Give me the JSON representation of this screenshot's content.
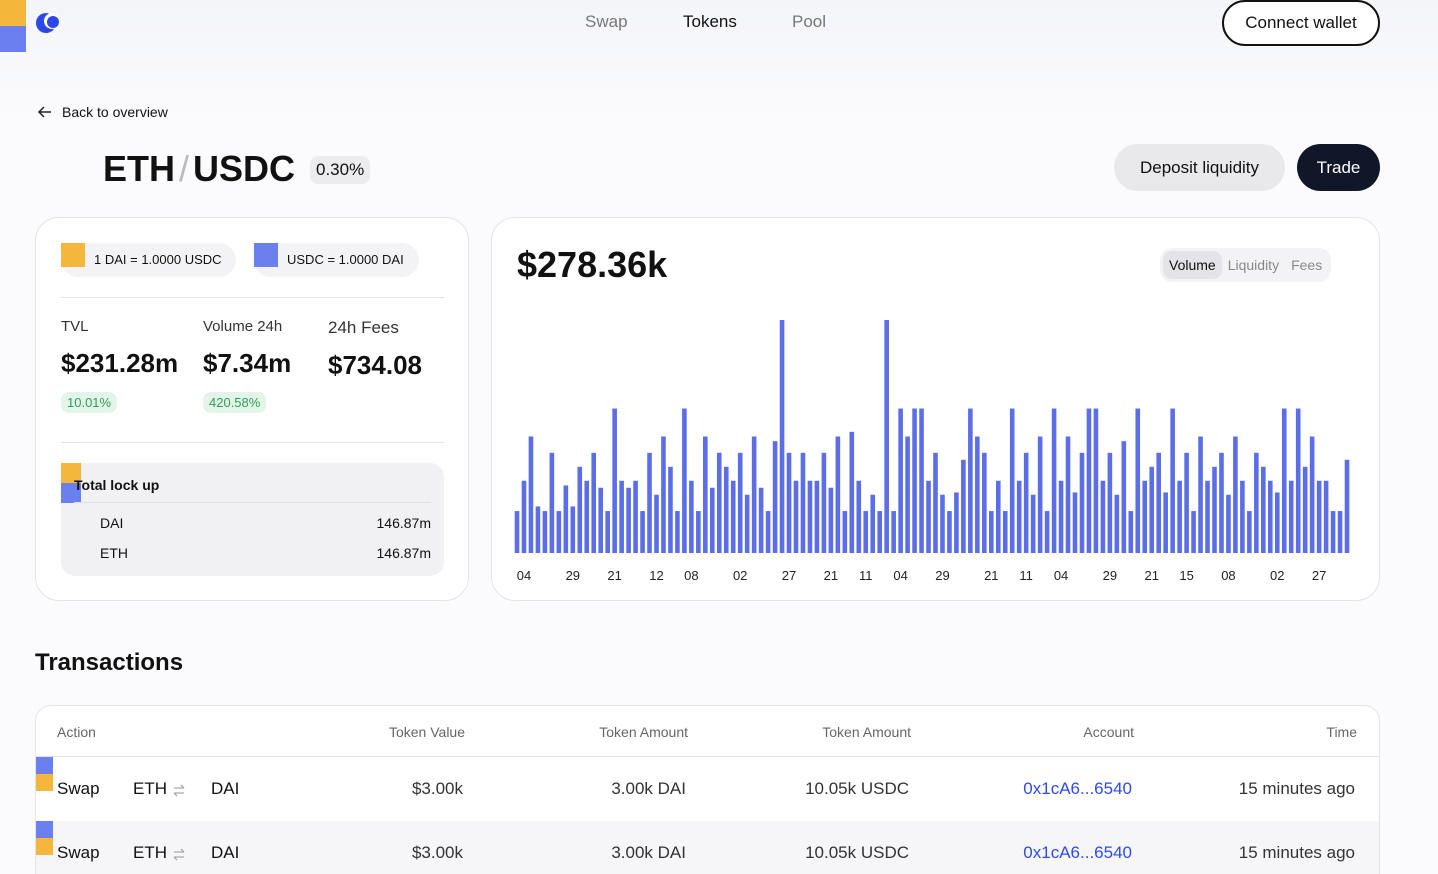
{
  "nav": {
    "links": [
      "Swap",
      "Tokens",
      "Pool"
    ],
    "connect": "Connect wallet"
  },
  "back": "Back to overview",
  "pair": {
    "base": "ETH",
    "separator": "/",
    "quote": "USDC",
    "fee": "0.30%",
    "deposit": "Deposit liquidity",
    "trade": "Trade"
  },
  "rates": [
    "1 DAI = 1.0000 USDC",
    "USDC = 1.0000 DAI"
  ],
  "stats": [
    {
      "label": "TVL",
      "value": "$231.28m",
      "change": "10.01%"
    },
    {
      "label": "Volume 24h",
      "value": "$7.34m",
      "change": "420.58%"
    },
    {
      "label": "24h Fees",
      "value": "$734.08"
    }
  ],
  "lockup": {
    "title": "Total lock up",
    "rows": [
      {
        "token": "DAI",
        "amount": "146.87m"
      },
      {
        "token": "ETH",
        "amount": "146.87m"
      }
    ]
  },
  "headline": "$278.36k",
  "tabs": [
    "Volume",
    "Liquidity",
    "Fees"
  ],
  "chart_data": {
    "type": "bar",
    "color": "#5b6ee8",
    "ylim": [
      0,
      100
    ],
    "categories": [
      null,
      "04",
      null,
      null,
      null,
      null,
      null,
      null,
      "29",
      null,
      null,
      null,
      null,
      null,
      "21",
      null,
      null,
      null,
      null,
      null,
      "12",
      null,
      null,
      null,
      null,
      "08",
      null,
      null,
      null,
      null,
      null,
      null,
      "02",
      null,
      null,
      null,
      null,
      null,
      null,
      "27",
      null,
      null,
      null,
      null,
      null,
      "21",
      null,
      null,
      null,
      null,
      "11",
      null,
      null,
      null,
      null,
      "04",
      null,
      null,
      null,
      null,
      null,
      "29",
      null,
      null,
      null,
      null,
      null,
      null,
      "21",
      null,
      null,
      null,
      null,
      "11",
      null,
      null,
      null,
      null,
      "04",
      null,
      null,
      null,
      null,
      null,
      null,
      "29",
      null,
      null,
      null,
      null,
      null,
      "21",
      null,
      null,
      null,
      null,
      "15",
      null,
      null,
      null,
      null,
      null,
      "08",
      null,
      null,
      null,
      null,
      null,
      null,
      "02",
      null,
      null,
      null,
      null,
      null,
      "27",
      null,
      null,
      null,
      null
    ],
    "values": [
      18,
      31,
      50,
      20,
      18,
      43,
      18,
      29,
      20,
      37,
      31,
      43,
      28,
      18,
      62,
      31,
      28,
      31,
      18,
      43,
      25,
      50,
      37,
      18,
      62,
      31,
      18,
      50,
      28,
      43,
      37,
      31,
      43,
      25,
      50,
      28,
      18,
      48,
      100,
      43,
      31,
      43,
      31,
      31,
      43,
      28,
      50,
      18,
      52,
      31,
      18,
      25,
      18,
      100,
      18,
      62,
      50,
      62,
      62,
      31,
      43,
      25,
      18,
      26,
      40,
      62,
      50,
      43,
      18,
      31,
      18,
      62,
      31,
      43,
      25,
      50,
      18,
      62,
      31,
      50,
      26,
      43,
      62,
      62,
      31,
      43,
      25,
      48,
      18,
      62,
      31,
      37,
      43,
      26,
      62,
      31,
      43,
      18,
      50,
      31,
      37,
      43,
      25,
      50,
      31,
      18,
      43,
      37,
      31,
      26,
      62,
      31,
      62,
      37,
      50,
      31,
      31,
      18,
      18,
      40
    ]
  },
  "transactions": {
    "title": "Transactions",
    "columns": [
      "Action",
      "Token Value",
      "Token Amount",
      "Token Amount",
      "Account",
      "Time"
    ],
    "rows": [
      {
        "action": "Swap",
        "from": "ETH",
        "to": "DAI",
        "value": "$3.00k",
        "amount_a": "3.00k DAI",
        "amount_b": "10.05k USDC",
        "account": "0x1cA6...6540",
        "time": "15 minutes ago"
      },
      {
        "action": "Swap",
        "from": "ETH",
        "to": "DAI",
        "value": "$3.00k",
        "amount_a": "3.00k DAI",
        "amount_b": "10.05k USDC",
        "account": "0x1cA6...6540",
        "time": "15 minutes ago"
      }
    ]
  }
}
